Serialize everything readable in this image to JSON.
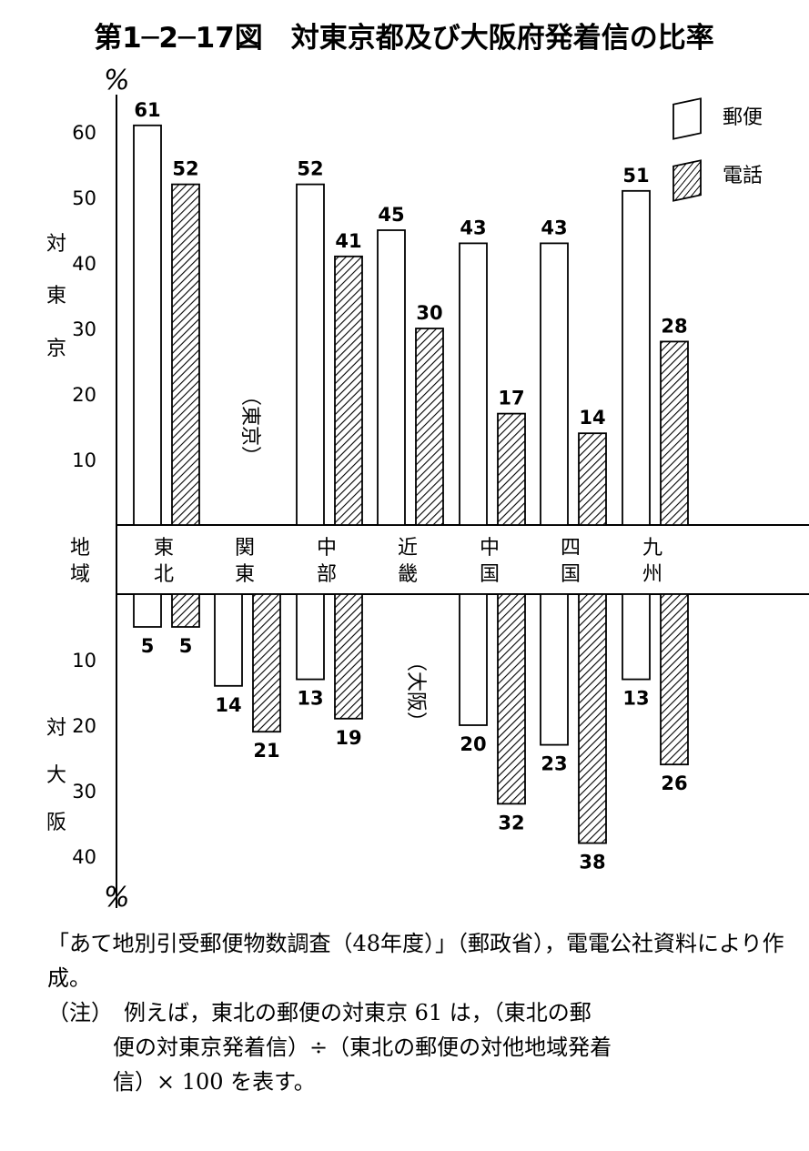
{
  "title": "第1─2─17図　対東京都及び大阪府発着信の比率",
  "unit_top": "%",
  "unit_bottom": "%",
  "upper_axis_label": [
    "対",
    "東",
    "京"
  ],
  "lower_axis_label": [
    "対",
    "大",
    "阪"
  ],
  "region_header": [
    "地",
    "域"
  ],
  "tokyo_note": "（東京）",
  "osaka_note": "（大阪）",
  "legend": {
    "mail": "郵便",
    "phone": "電話"
  },
  "colors": {
    "mail_fill": "#ffffff",
    "phone_fill": "#ffffff",
    "hatch": "#000000",
    "axis": "#000000"
  },
  "chart_data": {
    "type": "bar",
    "title": "第1─2─17図　対東京都及び大阪府発着信の比率",
    "categories": [
      "東北",
      "関東",
      "中部",
      "近畿",
      "中国",
      "四国",
      "九州"
    ],
    "category_labels": [
      [
        "東",
        "北"
      ],
      [
        "関",
        "東"
      ],
      [
        "中",
        "部"
      ],
      [
        "近",
        "畿"
      ],
      [
        "中",
        "国"
      ],
      [
        "四",
        "国"
      ],
      [
        "九",
        "州"
      ]
    ],
    "upper_ticks": [
      "10",
      "20",
      "30",
      "40",
      "50",
      "60"
    ],
    "lower_ticks": [
      "10",
      "20",
      "30",
      "40"
    ],
    "upper_ylim": [
      0,
      60
    ],
    "lower_ylim": [
      0,
      40
    ],
    "series": [
      {
        "name": "郵便",
        "pattern": "plain",
        "to_tokyo": [
          61,
          null,
          52,
          45,
          43,
          43,
          51
        ],
        "to_tokyo_labels": [
          "61",
          "",
          "52",
          "45",
          "43",
          "43",
          "51"
        ],
        "to_osaka": [
          5,
          14,
          13,
          null,
          20,
          23,
          13
        ],
        "to_osaka_labels": [
          "5",
          "14",
          "13",
          "",
          "20",
          "23",
          "13"
        ]
      },
      {
        "name": "電話",
        "pattern": "hatched",
        "to_tokyo": [
          52,
          null,
          41,
          30,
          17,
          14,
          28
        ],
        "to_tokyo_labels": [
          "52",
          "",
          "41",
          "30",
          "17",
          "14",
          "28"
        ],
        "to_osaka": [
          5,
          21,
          19,
          null,
          32,
          38,
          26
        ],
        "to_osaka_labels": [
          "5",
          "21",
          "19",
          "",
          "32",
          "38",
          "26"
        ]
      }
    ],
    "grid": false,
    "legend_position": "top-right"
  },
  "source": "「あて地別引受郵便物数調査（48年度）」（郵政省），電電公社資料により作成。",
  "note_label": "（注）",
  "note_line1": "例えば，東北の郵便の対東京 61 は，（東北の郵",
  "note_line2": "便の対東京発着信）÷（東北の郵便の対他地域発着",
  "note_line3": "信）× 100 を表す。"
}
